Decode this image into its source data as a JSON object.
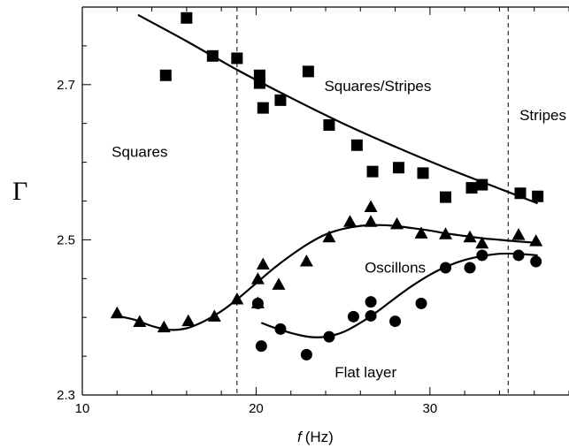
{
  "chart_data": {
    "type": "scatter",
    "xlabel_italic": "f",
    "xlabel_unit": "(Hz)",
    "ylabel": "Γ",
    "xlim": [
      10,
      38
    ],
    "ylim": [
      2.3,
      2.8
    ],
    "x_ticks": [
      {
        "value": 10,
        "label": "10"
      },
      {
        "value": 20,
        "label": "20"
      },
      {
        "value": 30,
        "label": "30"
      }
    ],
    "y_ticks": [
      {
        "value": 2.3,
        "label": "2.3"
      },
      {
        "value": 2.5,
        "label": "2.5"
      },
      {
        "value": 2.7,
        "label": "2.7"
      }
    ],
    "dashed_lines_x": [
      18.9,
      34.5
    ],
    "regions": [
      {
        "label": "Squares",
        "x": 13.3,
        "y": 2.607
      },
      {
        "label": "Squares/Stripes",
        "x": 27.0,
        "y": 2.692
      },
      {
        "label": "Stripes",
        "x": 36.5,
        "y": 2.654
      },
      {
        "label": "Oscillons",
        "x": 28.0,
        "y": 2.458
      },
      {
        "label": "Flat layer",
        "x": 26.3,
        "y": 2.323
      }
    ],
    "series": [
      {
        "marker": "square",
        "points": [
          [
            14.8,
            2.712
          ],
          [
            16.0,
            2.786
          ],
          [
            17.5,
            2.737
          ],
          [
            18.9,
            2.734
          ],
          [
            20.2,
            2.712
          ],
          [
            20.2,
            2.702
          ],
          [
            20.4,
            2.67
          ],
          [
            21.4,
            2.68
          ],
          [
            23.0,
            2.717
          ],
          [
            24.2,
            2.648
          ],
          [
            25.8,
            2.622
          ],
          [
            26.7,
            2.588
          ],
          [
            28.2,
            2.593
          ],
          [
            29.6,
            2.586
          ],
          [
            30.9,
            2.555
          ],
          [
            32.4,
            2.567
          ],
          [
            33.0,
            2.571
          ],
          [
            35.2,
            2.56
          ],
          [
            36.2,
            2.556
          ]
        ]
      },
      {
        "marker": "triangle",
        "points": [
          [
            12.0,
            2.405
          ],
          [
            13.3,
            2.394
          ],
          [
            14.7,
            2.387
          ],
          [
            16.1,
            2.395
          ],
          [
            17.6,
            2.401
          ],
          [
            18.9,
            2.423
          ],
          [
            20.1,
            2.418
          ],
          [
            20.1,
            2.449
          ],
          [
            20.4,
            2.468
          ],
          [
            21.3,
            2.442
          ],
          [
            22.9,
            2.472
          ],
          [
            24.2,
            2.503
          ],
          [
            25.4,
            2.523
          ],
          [
            26.6,
            2.523
          ],
          [
            26.6,
            2.542
          ],
          [
            28.1,
            2.52
          ],
          [
            29.5,
            2.508
          ],
          [
            30.9,
            2.507
          ],
          [
            32.3,
            2.503
          ],
          [
            33.0,
            2.495
          ],
          [
            35.1,
            2.506
          ],
          [
            36.1,
            2.498
          ]
        ]
      },
      {
        "marker": "circle",
        "points": [
          [
            20.1,
            2.418
          ],
          [
            20.3,
            2.363
          ],
          [
            21.4,
            2.385
          ],
          [
            22.9,
            2.352
          ],
          [
            24.2,
            2.375
          ],
          [
            25.6,
            2.401
          ],
          [
            26.6,
            2.402
          ],
          [
            26.6,
            2.42
          ],
          [
            28.0,
            2.395
          ],
          [
            29.5,
            2.418
          ],
          [
            30.9,
            2.464
          ],
          [
            32.3,
            2.464
          ],
          [
            33.0,
            2.48
          ],
          [
            35.1,
            2.48
          ],
          [
            36.1,
            2.472
          ]
        ]
      }
    ],
    "fit_curves": [
      [
        [
          13.2,
          2.79
        ],
        [
          16.0,
          2.756
        ],
        [
          19.0,
          2.718
        ],
        [
          22.0,
          2.683
        ],
        [
          25.0,
          2.65
        ],
        [
          28.0,
          2.62
        ],
        [
          31.0,
          2.592
        ],
        [
          34.0,
          2.566
        ],
        [
          36.2,
          2.547
        ]
      ],
      [
        [
          12.0,
          2.402
        ],
        [
          13.0,
          2.397
        ],
        [
          14.0,
          2.389
        ],
        [
          15.0,
          2.384
        ],
        [
          16.0,
          2.386
        ],
        [
          17.0,
          2.395
        ],
        [
          18.0,
          2.408
        ],
        [
          19.0,
          2.425
        ],
        [
          20.0,
          2.444
        ],
        [
          21.0,
          2.463
        ],
        [
          22.0,
          2.48
        ],
        [
          23.0,
          2.495
        ],
        [
          24.0,
          2.507
        ],
        [
          25.0,
          2.514
        ],
        [
          26.0,
          2.518
        ],
        [
          27.0,
          2.519
        ],
        [
          28.0,
          2.518
        ],
        [
          29.0,
          2.515
        ],
        [
          30.0,
          2.512
        ],
        [
          31.0,
          2.508
        ],
        [
          32.0,
          2.505
        ],
        [
          33.0,
          2.502
        ],
        [
          34.0,
          2.5
        ],
        [
          35.0,
          2.498
        ],
        [
          36.2,
          2.496
        ]
      ],
      [
        [
          20.3,
          2.393
        ],
        [
          21.0,
          2.387
        ],
        [
          22.0,
          2.38
        ],
        [
          23.0,
          2.375
        ],
        [
          24.0,
          2.375
        ],
        [
          25.0,
          2.381
        ],
        [
          26.0,
          2.393
        ],
        [
          27.0,
          2.408
        ],
        [
          28.0,
          2.425
        ],
        [
          29.0,
          2.441
        ],
        [
          30.0,
          2.455
        ],
        [
          31.0,
          2.466
        ],
        [
          32.0,
          2.474
        ],
        [
          33.0,
          2.479
        ],
        [
          34.0,
          2.482
        ],
        [
          35.0,
          2.482
        ],
        [
          36.2,
          2.48
        ]
      ]
    ]
  }
}
